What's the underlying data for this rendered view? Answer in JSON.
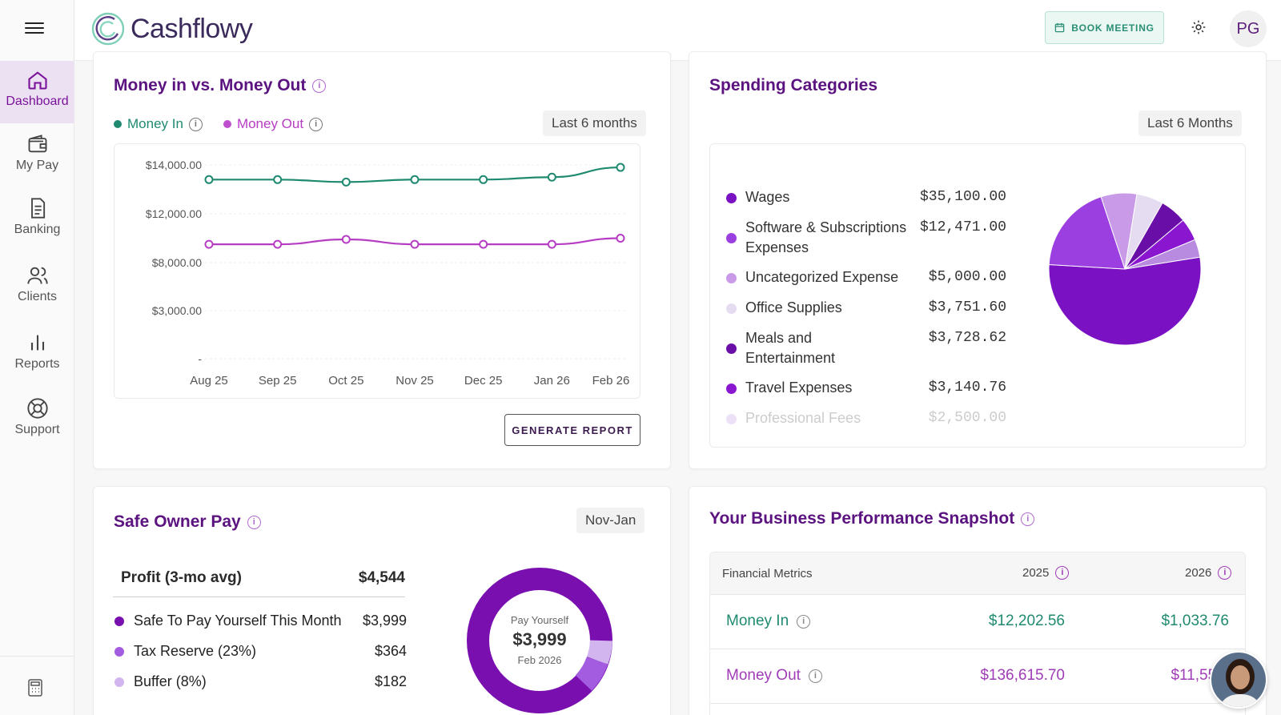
{
  "app": {
    "name": "Cashflowy"
  },
  "sidebar": {
    "items": [
      {
        "label": "Dashboard",
        "icon": "home-icon",
        "active": true
      },
      {
        "label": "My Pay",
        "icon": "wallet-icon"
      },
      {
        "label": "Banking",
        "icon": "document-icon"
      },
      {
        "label": "Clients",
        "icon": "users-icon"
      },
      {
        "label": "Reports",
        "icon": "bar-chart-icon"
      },
      {
        "label": "Support",
        "icon": "lifebuoy-icon"
      }
    ],
    "bottom_icon": "calculator-icon"
  },
  "header": {
    "book_meeting": "BOOK MEETING",
    "avatar_initials": "PG"
  },
  "money_chart": {
    "title": "Money in vs. Money Out",
    "legend_in": "Money In",
    "legend_out": "Money Out",
    "range": "Last 6 months",
    "generate_report": "GENERATE REPORT",
    "colors": {
      "in": "#1f8a70",
      "out": "#b73cc4"
    }
  },
  "chart_data": {
    "type": "line",
    "categories": [
      "Aug 25",
      "Sep 25",
      "Oct 25",
      "Nov 25",
      "Dec 25",
      "Jan 26",
      "Feb 26"
    ],
    "y_tick_labels": [
      "$14,000.00",
      "$12,000.00",
      "$8,000.00",
      "$3,000.00",
      "-"
    ],
    "series": [
      {
        "name": "Money In",
        "values": [
          13400,
          13400,
          13300,
          13400,
          13400,
          13500,
          13900
        ]
      },
      {
        "name": "Money Out",
        "values": [
          9500,
          9500,
          9900,
          9500,
          9500,
          9500,
          10000
        ]
      }
    ],
    "legend_position": "top-left",
    "grid": true
  },
  "spending": {
    "title": "Spending Categories",
    "range": "Last 6 Months",
    "items": [
      {
        "name": "Wages",
        "amount": "$35,100.00",
        "color": "#7a12c4"
      },
      {
        "name": "Software & Subscriptions Expenses",
        "amount": "$12,471.00",
        "color": "#9c3fe0"
      },
      {
        "name": "Uncategorized Expense",
        "amount": "$5,000.00",
        "color": "#c89ae8"
      },
      {
        "name": "Office Supplies",
        "amount": "$3,751.60",
        "color": "#e6dcf1"
      },
      {
        "name": "Meals and Entertainment",
        "amount": "$3,728.62",
        "color": "#6a0ea8"
      },
      {
        "name": "Travel Expenses",
        "amount": "$3,140.76",
        "color": "#8a16d0"
      },
      {
        "name": "Professional Fees",
        "amount": "$2,500.00",
        "color": "#b88ae0"
      }
    ]
  },
  "safe_pay": {
    "title": "Safe Owner Pay",
    "range": "Nov-Jan",
    "profit_label": "Profit (3-mo avg)",
    "profit_value": "$4,544",
    "rows": [
      {
        "label": "Safe To Pay Yourself This Month",
        "value": "$3,999",
        "color": "#7a0fb0"
      },
      {
        "label": "Tax Reserve (23%)",
        "value": "$364",
        "color": "#a35be0"
      },
      {
        "label": "Buffer (8%)",
        "value": "$182",
        "color": "#d2b5ee"
      }
    ],
    "donut": {
      "label": "Pay Yourself",
      "value": "$3,999",
      "date": "Feb 2026"
    }
  },
  "performance": {
    "title": "Your Business Performance Snapshot",
    "col_metric": "Financial Metrics",
    "col_2025": "2025",
    "col_2026": "2026",
    "rows": [
      {
        "label": "Money In",
        "v2025": "$12,202.56",
        "v2026": "$1,033.76",
        "color": "#1f8a70"
      },
      {
        "label": "Money Out",
        "v2025": "$136,615.70",
        "v2026": "$11,553.",
        "color": "#a03cb8"
      }
    ]
  }
}
